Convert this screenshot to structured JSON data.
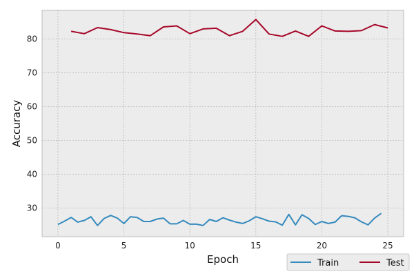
{
  "chart_data": {
    "type": "line",
    "xlabel": "Epoch",
    "ylabel": "Accuracy",
    "xlim": [
      -1.2,
      26.2
    ],
    "ylim": [
      21.5,
      88.5
    ],
    "xticks": [
      0,
      5,
      10,
      15,
      20,
      25
    ],
    "yticks": [
      30,
      40,
      50,
      60,
      70,
      80
    ],
    "grid": true,
    "legend_position": "below-right",
    "colors": {
      "plot_bg": "#ececec",
      "grid": "#b8b8b8",
      "spine": "#bcbcbc"
    },
    "series": [
      {
        "name": "Train",
        "color": "#348abd",
        "x": [
          0,
          0.5,
          1,
          1.5,
          2,
          2.5,
          3,
          3.5,
          4,
          4.5,
          5,
          5.5,
          6,
          6.5,
          7,
          7.5,
          8,
          8.5,
          9,
          9.5,
          10,
          10.5,
          11,
          11.5,
          12,
          12.5,
          13,
          13.5,
          14,
          14.5,
          15,
          15.5,
          16,
          16.5,
          17,
          17.5,
          18,
          18.5,
          19,
          19.5,
          20,
          20.5,
          21,
          21.5,
          22,
          22.5,
          23,
          23.5,
          24,
          24.5
        ],
        "values": [
          25.1,
          26.1,
          27.2,
          25.8,
          26.3,
          27.4,
          24.8,
          26.9,
          27.8,
          27.0,
          25.4,
          27.4,
          27.2,
          26.0,
          26.0,
          26.7,
          27.0,
          25.3,
          25.3,
          26.3,
          25.2,
          25.2,
          24.8,
          26.6,
          26.0,
          27.1,
          26.4,
          25.8,
          25.4,
          26.2,
          27.4,
          26.8,
          26.1,
          25.9,
          24.9,
          28.1,
          25.0,
          28.0,
          26.9,
          25.1,
          26.0,
          25.4,
          25.8,
          27.7,
          27.5,
          27.1,
          25.9,
          25.0,
          27.0,
          28.4
        ]
      },
      {
        "name": "Test",
        "color": "#a60628",
        "x": [
          1,
          2,
          3,
          4,
          5,
          6,
          7,
          8,
          9,
          10,
          11,
          12,
          13,
          14,
          15,
          16,
          17,
          18,
          19,
          20,
          21,
          22,
          23,
          24,
          25
        ],
        "values": [
          82.3,
          81.6,
          83.4,
          82.8,
          81.9,
          81.5,
          81.0,
          83.6,
          83.9,
          81.6,
          83.0,
          83.2,
          81.0,
          82.3,
          85.8,
          81.5,
          80.8,
          82.4,
          80.8,
          83.9,
          82.4,
          82.3,
          82.5,
          84.3,
          83.3
        ]
      }
    ]
  }
}
